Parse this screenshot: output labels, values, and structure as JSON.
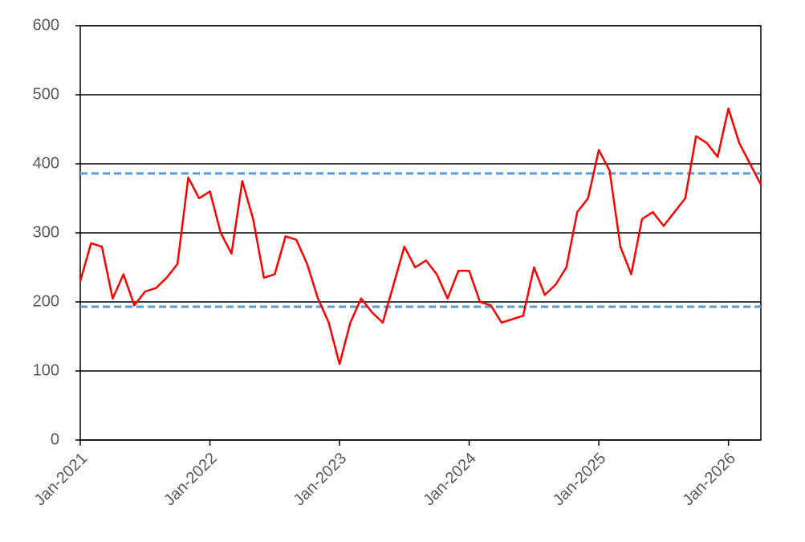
{
  "chart_data": {
    "type": "line",
    "x": [
      "2021-01",
      "2021-02",
      "2021-03",
      "2021-04",
      "2021-05",
      "2021-06",
      "2021-07",
      "2021-08",
      "2021-09",
      "2021-10",
      "2021-11",
      "2021-12",
      "2022-01",
      "2022-02",
      "2022-03",
      "2022-04",
      "2022-05",
      "2022-06",
      "2022-07",
      "2022-08",
      "2022-09",
      "2022-10",
      "2022-11",
      "2022-12",
      "2023-01",
      "2023-02",
      "2023-03",
      "2023-04",
      "2023-05",
      "2023-06",
      "2023-07",
      "2023-08",
      "2023-09",
      "2023-10",
      "2023-11",
      "2023-12",
      "2024-01",
      "2024-02",
      "2024-03",
      "2024-04",
      "2024-05",
      "2024-06",
      "2024-07",
      "2024-08",
      "2024-09",
      "2024-10",
      "2024-11",
      "2024-12",
      "2025-01",
      "2025-02",
      "2025-03",
      "2025-04",
      "2025-05",
      "2025-06",
      "2025-07",
      "2025-08",
      "2025-09",
      "2025-10",
      "2025-11",
      "2025-12",
      "2026-01",
      "2026-02",
      "2026-03",
      "2026-04"
    ],
    "series": [
      {
        "color": "#ff0000",
        "values": [
          230,
          285,
          280,
          205,
          240,
          195,
          215,
          220,
          235,
          255,
          380,
          350,
          360,
          300,
          270,
          375,
          320,
          235,
          240,
          295,
          290,
          255,
          205,
          170,
          110,
          170,
          205,
          185,
          170,
          225,
          280,
          250,
          260,
          240,
          205,
          245,
          245,
          200,
          195,
          170,
          175,
          180,
          250,
          210,
          225,
          250,
          330,
          350,
          420,
          390,
          280,
          240,
          320,
          330,
          310,
          330,
          350,
          440,
          430,
          410,
          480,
          430,
          400,
          370
        ]
      }
    ],
    "hlines": [
      {
        "value": 386,
        "color": "#5b9bd5"
      },
      {
        "value": 193,
        "color": "#5b9bd5"
      }
    ],
    "xlim": [
      "2021-01",
      "2026-04"
    ],
    "xticks": [
      {
        "value": "2021-01",
        "label": "Jan-2021"
      },
      {
        "value": "2022-01",
        "label": "Jan-2022"
      },
      {
        "value": "2023-01",
        "label": "Jan-2023"
      },
      {
        "value": "2024-01",
        "label": "Jan-2024"
      },
      {
        "value": "2025-01",
        "label": "Jan-2025"
      },
      {
        "value": "2026-01",
        "label": "Jan-2026"
      }
    ],
    "ylim": [
      0,
      600
    ],
    "yticks": [
      0,
      100,
      200,
      300,
      400,
      500,
      600
    ],
    "grid": true
  }
}
